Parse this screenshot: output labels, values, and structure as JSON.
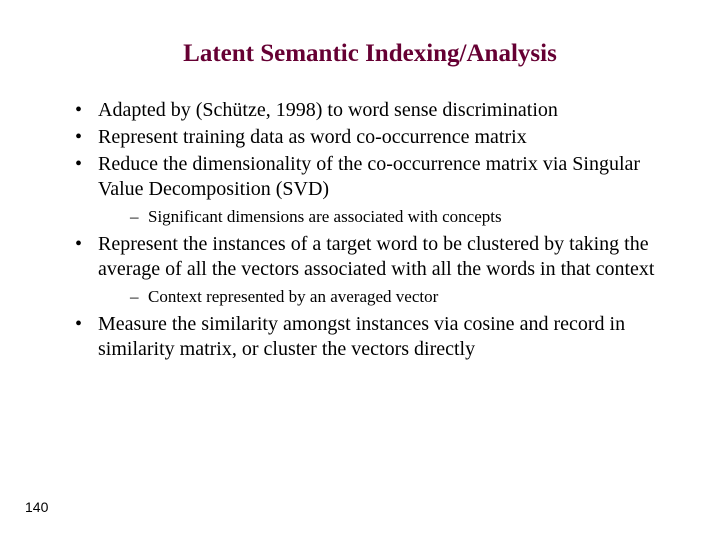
{
  "title": "Latent Semantic Indexing/Analysis",
  "bullets": {
    "b1": "Adapted by (Schütze, 1998) to word sense discrimination",
    "b2": "Represent training data as word co-occurrence matrix",
    "b3": "Reduce the dimensionality of the co-occurrence matrix via Singular Value Decomposition (SVD)",
    "b3_sub1": "Significant dimensions are associated with concepts",
    "b4": "Represent the instances of a target word to be clustered by taking the average of all the vectors associated with all the words in that context",
    "b4_sub1": "Context represented by an averaged vector",
    "b5": "Measure the similarity amongst instances via cosine and record in similarity matrix, or cluster the vectors directly"
  },
  "page_number": "140",
  "colors": {
    "title_color": "#660033",
    "text_color": "#000000",
    "background": "#ffffff"
  },
  "typography": {
    "title_fontsize": 25,
    "bullet_fontsize": 20,
    "sub_bullet_fontsize": 17,
    "page_number_fontsize": 14,
    "font_family": "Times New Roman"
  }
}
